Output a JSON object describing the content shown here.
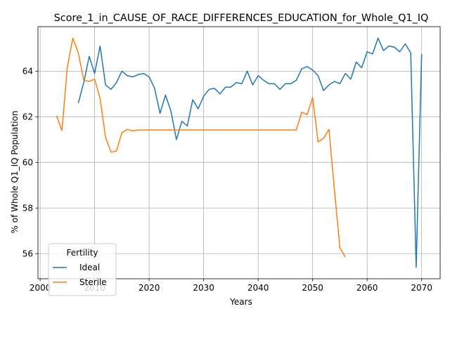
{
  "chart_data": {
    "type": "line",
    "title": "Score_1_in_CAUSE_OF_RACE_DIFFERENCES_EDUCATION_for_Whole_Q1_IQ",
    "xlabel": "Years",
    "ylabel": "% of Whole Q1_IQ Population",
    "xlim": [
      1999.6,
      2073.4
    ],
    "ylim": [
      54.9,
      65.95
    ],
    "xticks": [
      2000,
      2010,
      2020,
      2030,
      2040,
      2050,
      2060,
      2070
    ],
    "yticks": [
      56,
      58,
      60,
      62,
      64
    ],
    "grid": true,
    "legend": {
      "title": "Fertility",
      "placement": "lower-left"
    },
    "series": [
      {
        "name": "Ideal",
        "color": "#1f77b4",
        "x": [
          2007,
          2008,
          2009,
          2010,
          2011,
          2012,
          2013,
          2014,
          2015,
          2016,
          2017,
          2018,
          2019,
          2020,
          2021,
          2022,
          2023,
          2024,
          2025,
          2026,
          2027,
          2028,
          2029,
          2030,
          2031,
          2032,
          2033,
          2034,
          2035,
          2036,
          2037,
          2038,
          2039,
          2040,
          2041,
          2042,
          2043,
          2044,
          2045,
          2046,
          2047,
          2048,
          2049,
          2050,
          2051,
          2052,
          2053,
          2054,
          2055,
          2056,
          2057,
          2058,
          2059,
          2060,
          2061,
          2062,
          2063,
          2064,
          2065,
          2066,
          2067,
          2068,
          2069,
          2070
        ],
        "y": [
          62.6,
          63.5,
          64.65,
          63.9,
          65.1,
          63.4,
          63.2,
          63.5,
          64.0,
          63.8,
          63.75,
          63.85,
          63.9,
          63.75,
          63.25,
          62.15,
          62.95,
          62.25,
          61.0,
          61.8,
          61.6,
          62.75,
          62.35,
          62.9,
          63.2,
          63.25,
          63.0,
          63.3,
          63.3,
          63.5,
          63.45,
          64.0,
          63.4,
          63.8,
          63.6,
          63.45,
          63.45,
          63.2,
          63.45,
          63.45,
          63.6,
          64.1,
          64.2,
          64.05,
          63.8,
          63.15,
          63.4,
          63.55,
          63.45,
          63.9,
          63.65,
          64.4,
          64.15,
          64.85,
          64.75,
          65.45,
          64.9,
          65.1,
          65.05,
          64.85,
          65.2,
          64.8,
          55.4,
          64.75
        ]
      },
      {
        "name": "Sterile",
        "color": "#ff7f0e",
        "x": [
          2003,
          2004,
          2005,
          2006,
          2007,
          2008,
          2009,
          2010,
          2011,
          2012,
          2013,
          2014,
          2015,
          2016,
          2017,
          2018,
          2019,
          2020,
          2021,
          2022,
          2023,
          2024,
          2025,
          2026,
          2027,
          2028,
          2029,
          2030,
          2031,
          2032,
          2033,
          2034,
          2035,
          2036,
          2037,
          2038,
          2039,
          2040,
          2041,
          2042,
          2043,
          2044,
          2045,
          2046,
          2047,
          2048,
          2049,
          2050,
          2051,
          2052,
          2053,
          2054,
          2055,
          2056
        ],
        "y": [
          62.05,
          61.4,
          64.2,
          65.45,
          64.8,
          63.6,
          63.55,
          63.65,
          62.8,
          61.1,
          60.45,
          60.5,
          61.3,
          61.45,
          61.38,
          61.42,
          61.42,
          61.42,
          61.42,
          61.42,
          61.42,
          61.42,
          61.42,
          61.42,
          61.42,
          61.42,
          61.42,
          61.42,
          61.42,
          61.42,
          61.42,
          61.42,
          61.42,
          61.42,
          61.42,
          61.42,
          61.42,
          61.42,
          61.42,
          61.42,
          61.42,
          61.42,
          61.42,
          61.42,
          61.42,
          62.2,
          62.1,
          62.85,
          60.9,
          61.05,
          61.45,
          58.8,
          56.25,
          55.85
        ]
      }
    ]
  }
}
